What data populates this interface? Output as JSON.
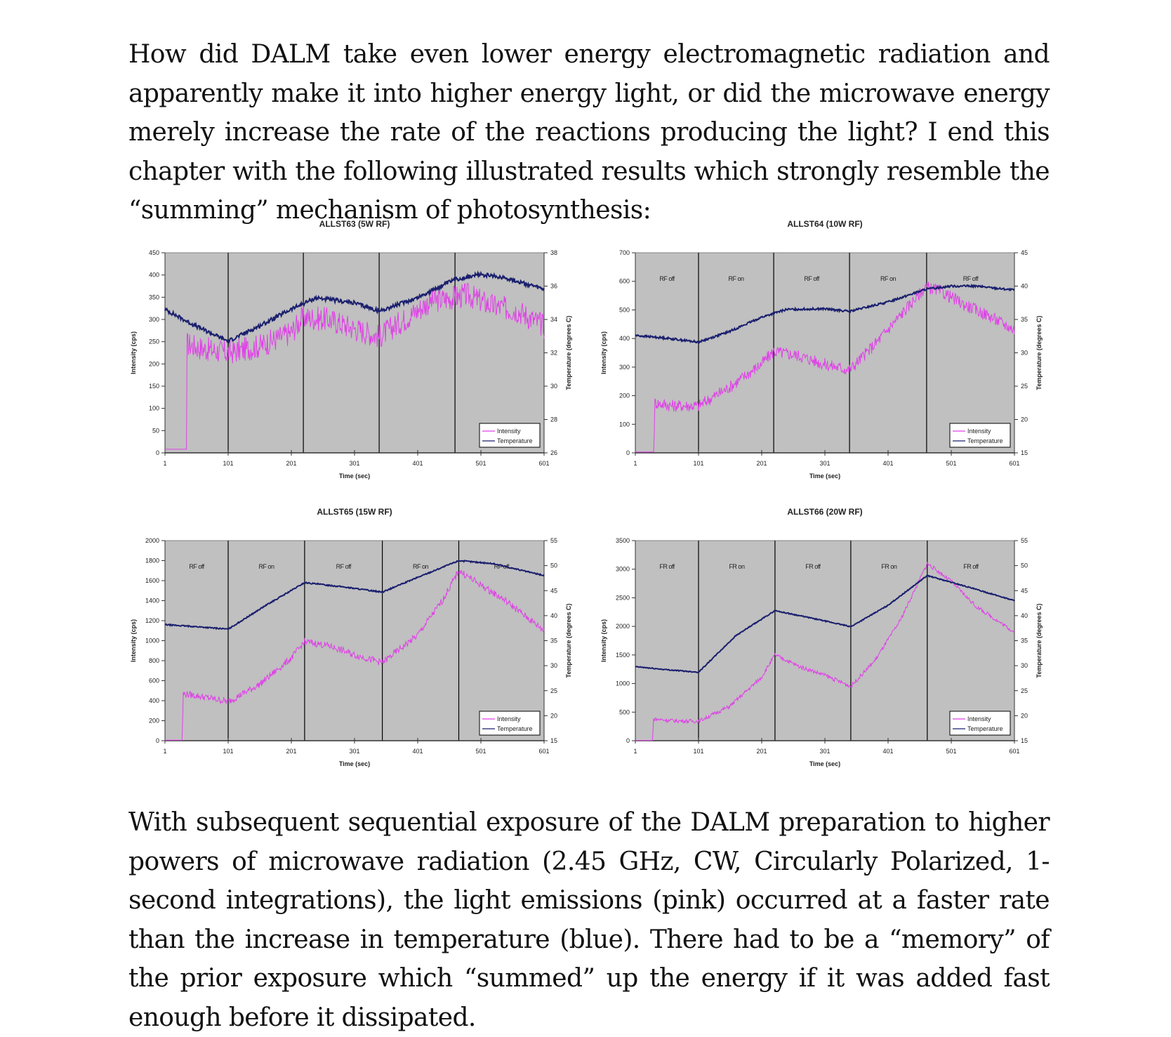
{
  "text": {
    "paragraph_1": "How did DALM take even lower energy electromagnetic radiation and apparently make it into higher energy light, or did the microwave energy merely increase the rate of the reactions producing the light? I end this chapter with the following illustrated results which strongly resemble the “summing” mechanism of photosynthesis:",
    "paragraph_2": "With subsequent sequential exposure of the DALM preparation to higher powers of microwave radiation (2.45 GHz, CW, Circularly Polarized, 1-second integrations), the light emissions (pink) occurred at a faster rate than the increase in temperature (blue). There had to be a “memory” of the prior exposure which “summed” up the energy if it was added fast enough before it dissipated."
  },
  "colors": {
    "intensity": "#e040e8",
    "temperature": "#1a1f6e",
    "plot_bg": "#c0c0c0"
  },
  "chart_data": [
    {
      "type": "line",
      "title": "ALLST63 (5W RF)",
      "xlabel": "Time (sec)",
      "ylabel": "Intensity (cps)",
      "y2label": "Temperature (degrees C)",
      "x_ticks": [
        "1",
        "101",
        "201",
        "301",
        "401",
        "501",
        "601"
      ],
      "xlim": [
        1,
        601
      ],
      "ylim": [
        0,
        450
      ],
      "y_ticks": [
        "0",
        "50",
        "100",
        "150",
        "200",
        "250",
        "300",
        "350",
        "400",
        "450"
      ],
      "y2lim": [
        26,
        38
      ],
      "y2_ticks": [
        "26",
        "28",
        "30",
        "32",
        "34",
        "36",
        "38"
      ],
      "phase_boundaries": [
        101,
        220,
        340,
        460
      ],
      "phase_labels": [],
      "legend": [
        "Intensity",
        "Temperature"
      ],
      "legend_position": "bottom-right",
      "series": [
        {
          "name": "Intensity",
          "axis": "left",
          "noise": 28,
          "points": [
            [
              1,
              8
            ],
            [
              35,
              8
            ],
            [
              36,
              245
            ],
            [
              60,
              235
            ],
            [
              101,
              225
            ],
            [
              150,
              240
            ],
            [
              200,
              270
            ],
            [
              220,
              305
            ],
            [
              260,
              300
            ],
            [
              300,
              280
            ],
            [
              340,
              262
            ],
            [
              380,
              300
            ],
            [
              420,
              340
            ],
            [
              460,
              350
            ],
            [
              480,
              355
            ],
            [
              520,
              330
            ],
            [
              560,
              320
            ],
            [
              601,
              285
            ]
          ]
        },
        {
          "name": "Temperature",
          "axis": "right",
          "noise": 0.12,
          "points": [
            [
              1,
              34.6
            ],
            [
              50,
              33.6
            ],
            [
              101,
              32.7
            ],
            [
              150,
              33.6
            ],
            [
              200,
              34.6
            ],
            [
              240,
              35.3
            ],
            [
              300,
              35.0
            ],
            [
              340,
              34.5
            ],
            [
              400,
              35.3
            ],
            [
              460,
              36.4
            ],
            [
              500,
              36.7
            ],
            [
              540,
              36.5
            ],
            [
              601,
              35.8
            ]
          ]
        }
      ]
    },
    {
      "type": "line",
      "title": "ALLST64 (10W RF)",
      "xlabel": "Time (sec)",
      "ylabel": "Intensity (cps)",
      "y2label": "Temperature (degrees C)",
      "x_ticks": [
        "1",
        "101",
        "201",
        "301",
        "401",
        "501",
        "601"
      ],
      "xlim": [
        1,
        601
      ],
      "ylim": [
        0,
        700
      ],
      "y_ticks": [
        "0",
        "100",
        "200",
        "300",
        "400",
        "500",
        "600",
        "700"
      ],
      "y2lim": [
        15,
        45
      ],
      "y2_ticks": [
        "15",
        "20",
        "25",
        "30",
        "35",
        "40",
        "45"
      ],
      "phase_boundaries": [
        101,
        220,
        340,
        462
      ],
      "phase_labels": [
        "RF off",
        "RF on",
        "RF off",
        "RF on",
        "RF off"
      ],
      "legend": [
        "Intensity",
        "Temperature"
      ],
      "legend_position": "bottom-right",
      "series": [
        {
          "name": "Intensity",
          "axis": "left",
          "noise": 22,
          "points": [
            [
              1,
              3
            ],
            [
              30,
              3
            ],
            [
              32,
              175
            ],
            [
              60,
              165
            ],
            [
              101,
              165
            ],
            [
              150,
              230
            ],
            [
              200,
              310
            ],
            [
              220,
              355
            ],
            [
              260,
              340
            ],
            [
              300,
              310
            ],
            [
              340,
              290
            ],
            [
              380,
              380
            ],
            [
              420,
              480
            ],
            [
              460,
              580
            ],
            [
              480,
              570
            ],
            [
              520,
              520
            ],
            [
              560,
              480
            ],
            [
              601,
              430
            ]
          ]
        },
        {
          "name": "Temperature",
          "axis": "right",
          "noise": 0.15,
          "points": [
            [
              1,
              32.6
            ],
            [
              50,
              32.2
            ],
            [
              101,
              31.6
            ],
            [
              150,
              33.2
            ],
            [
              200,
              35.3
            ],
            [
              240,
              36.5
            ],
            [
              300,
              36.6
            ],
            [
              340,
              36.2
            ],
            [
              400,
              37.6
            ],
            [
              460,
              39.5
            ],
            [
              500,
              40.0
            ],
            [
              540,
              40.0
            ],
            [
              601,
              39.4
            ]
          ]
        }
      ]
    },
    {
      "type": "line",
      "title": "ALLST65 (15W RF)",
      "xlabel": "Time (sec)",
      "ylabel": "Intensity (cps)",
      "y2label": "Temperature (degrees C)",
      "x_ticks": [
        "1",
        "101",
        "201",
        "301",
        "401",
        "501",
        "601"
      ],
      "xlim": [
        1,
        601
      ],
      "ylim": [
        0,
        2000
      ],
      "y_ticks": [
        "0",
        "200",
        "400",
        "600",
        "800",
        "1000",
        "1200",
        "1400",
        "1600",
        "1800",
        "2000"
      ],
      "y2lim": [
        15,
        55
      ],
      "y2_ticks": [
        "15",
        "20",
        "25",
        "30",
        "35",
        "40",
        "45",
        "50",
        "55"
      ],
      "phase_boundaries": [
        101,
        222,
        345,
        466
      ],
      "phase_labels": [
        "RF off",
        "RF on",
        "RF off",
        "RF on",
        "RF off"
      ],
      "legend": [
        "Intensity",
        "Temperature"
      ],
      "legend_position": "bottom-right",
      "series": [
        {
          "name": "Intensity",
          "axis": "left",
          "noise": 35,
          "points": [
            [
              1,
              5
            ],
            [
              28,
              5
            ],
            [
              30,
              470
            ],
            [
              60,
              440
            ],
            [
              101,
              390
            ],
            [
              150,
              560
            ],
            [
              200,
              820
            ],
            [
              222,
              990
            ],
            [
              260,
              950
            ],
            [
              300,
              860
            ],
            [
              345,
              780
            ],
            [
              400,
              1050
            ],
            [
              440,
              1400
            ],
            [
              466,
              1700
            ],
            [
              500,
              1560
            ],
            [
              540,
              1400
            ],
            [
              601,
              1100
            ]
          ]
        },
        {
          "name": "Temperature",
          "axis": "right",
          "noise": 0.12,
          "points": [
            [
              1,
              38.2
            ],
            [
              50,
              37.8
            ],
            [
              101,
              37.3
            ],
            [
              160,
              42.0
            ],
            [
              222,
              46.6
            ],
            [
              280,
              45.8
            ],
            [
              345,
              44.7
            ],
            [
              400,
              47.6
            ],
            [
              466,
              51.0
            ],
            [
              520,
              50.4
            ],
            [
              601,
              48.0
            ]
          ]
        }
      ]
    },
    {
      "type": "line",
      "title": "ALLST66 (20W RF)",
      "xlabel": "Time (sec)",
      "ylabel": "Intensity (cps)",
      "y2label": "Temperature (degrees C)",
      "x_ticks": [
        "1",
        "101",
        "201",
        "301",
        "401",
        "501",
        "601"
      ],
      "xlim": [
        1,
        601
      ],
      "ylim": [
        0,
        3500
      ],
      "y_ticks": [
        "0",
        "500",
        "1000",
        "1500",
        "2000",
        "2500",
        "3000",
        "3500"
      ],
      "y2lim": [
        15,
        55
      ],
      "y2_ticks": [
        "15",
        "20",
        "25",
        "30",
        "35",
        "40",
        "45",
        "50",
        "55"
      ],
      "phase_boundaries": [
        101,
        222,
        342,
        463
      ],
      "phase_labels": [
        "FR off",
        "FR on",
        "FR off",
        "FR on",
        "FR off"
      ],
      "legend": [
        "Intensity",
        "Temperature"
      ],
      "legend_position": "bottom-right",
      "series": [
        {
          "name": "Intensity",
          "axis": "left",
          "noise": 35,
          "points": [
            [
              1,
              5
            ],
            [
              28,
              5
            ],
            [
              30,
              380
            ],
            [
              60,
              350
            ],
            [
              101,
              340
            ],
            [
              150,
              600
            ],
            [
              200,
              1100
            ],
            [
              222,
              1500
            ],
            [
              260,
              1300
            ],
            [
              300,
              1150
            ],
            [
              342,
              950
            ],
            [
              380,
              1400
            ],
            [
              420,
              2100
            ],
            [
              463,
              3100
            ],
            [
              500,
              2800
            ],
            [
              540,
              2350
            ],
            [
              601,
              1900
            ]
          ]
        },
        {
          "name": "Temperature",
          "axis": "right",
          "noise": 0.1,
          "points": [
            [
              1,
              29.8
            ],
            [
              50,
              29.2
            ],
            [
              101,
              28.7
            ],
            [
              160,
              36.0
            ],
            [
              222,
              41.0
            ],
            [
              280,
              39.5
            ],
            [
              342,
              37.8
            ],
            [
              400,
              42.0
            ],
            [
              463,
              48.0
            ],
            [
              520,
              46.0
            ],
            [
              601,
              43.0
            ]
          ]
        }
      ]
    }
  ]
}
